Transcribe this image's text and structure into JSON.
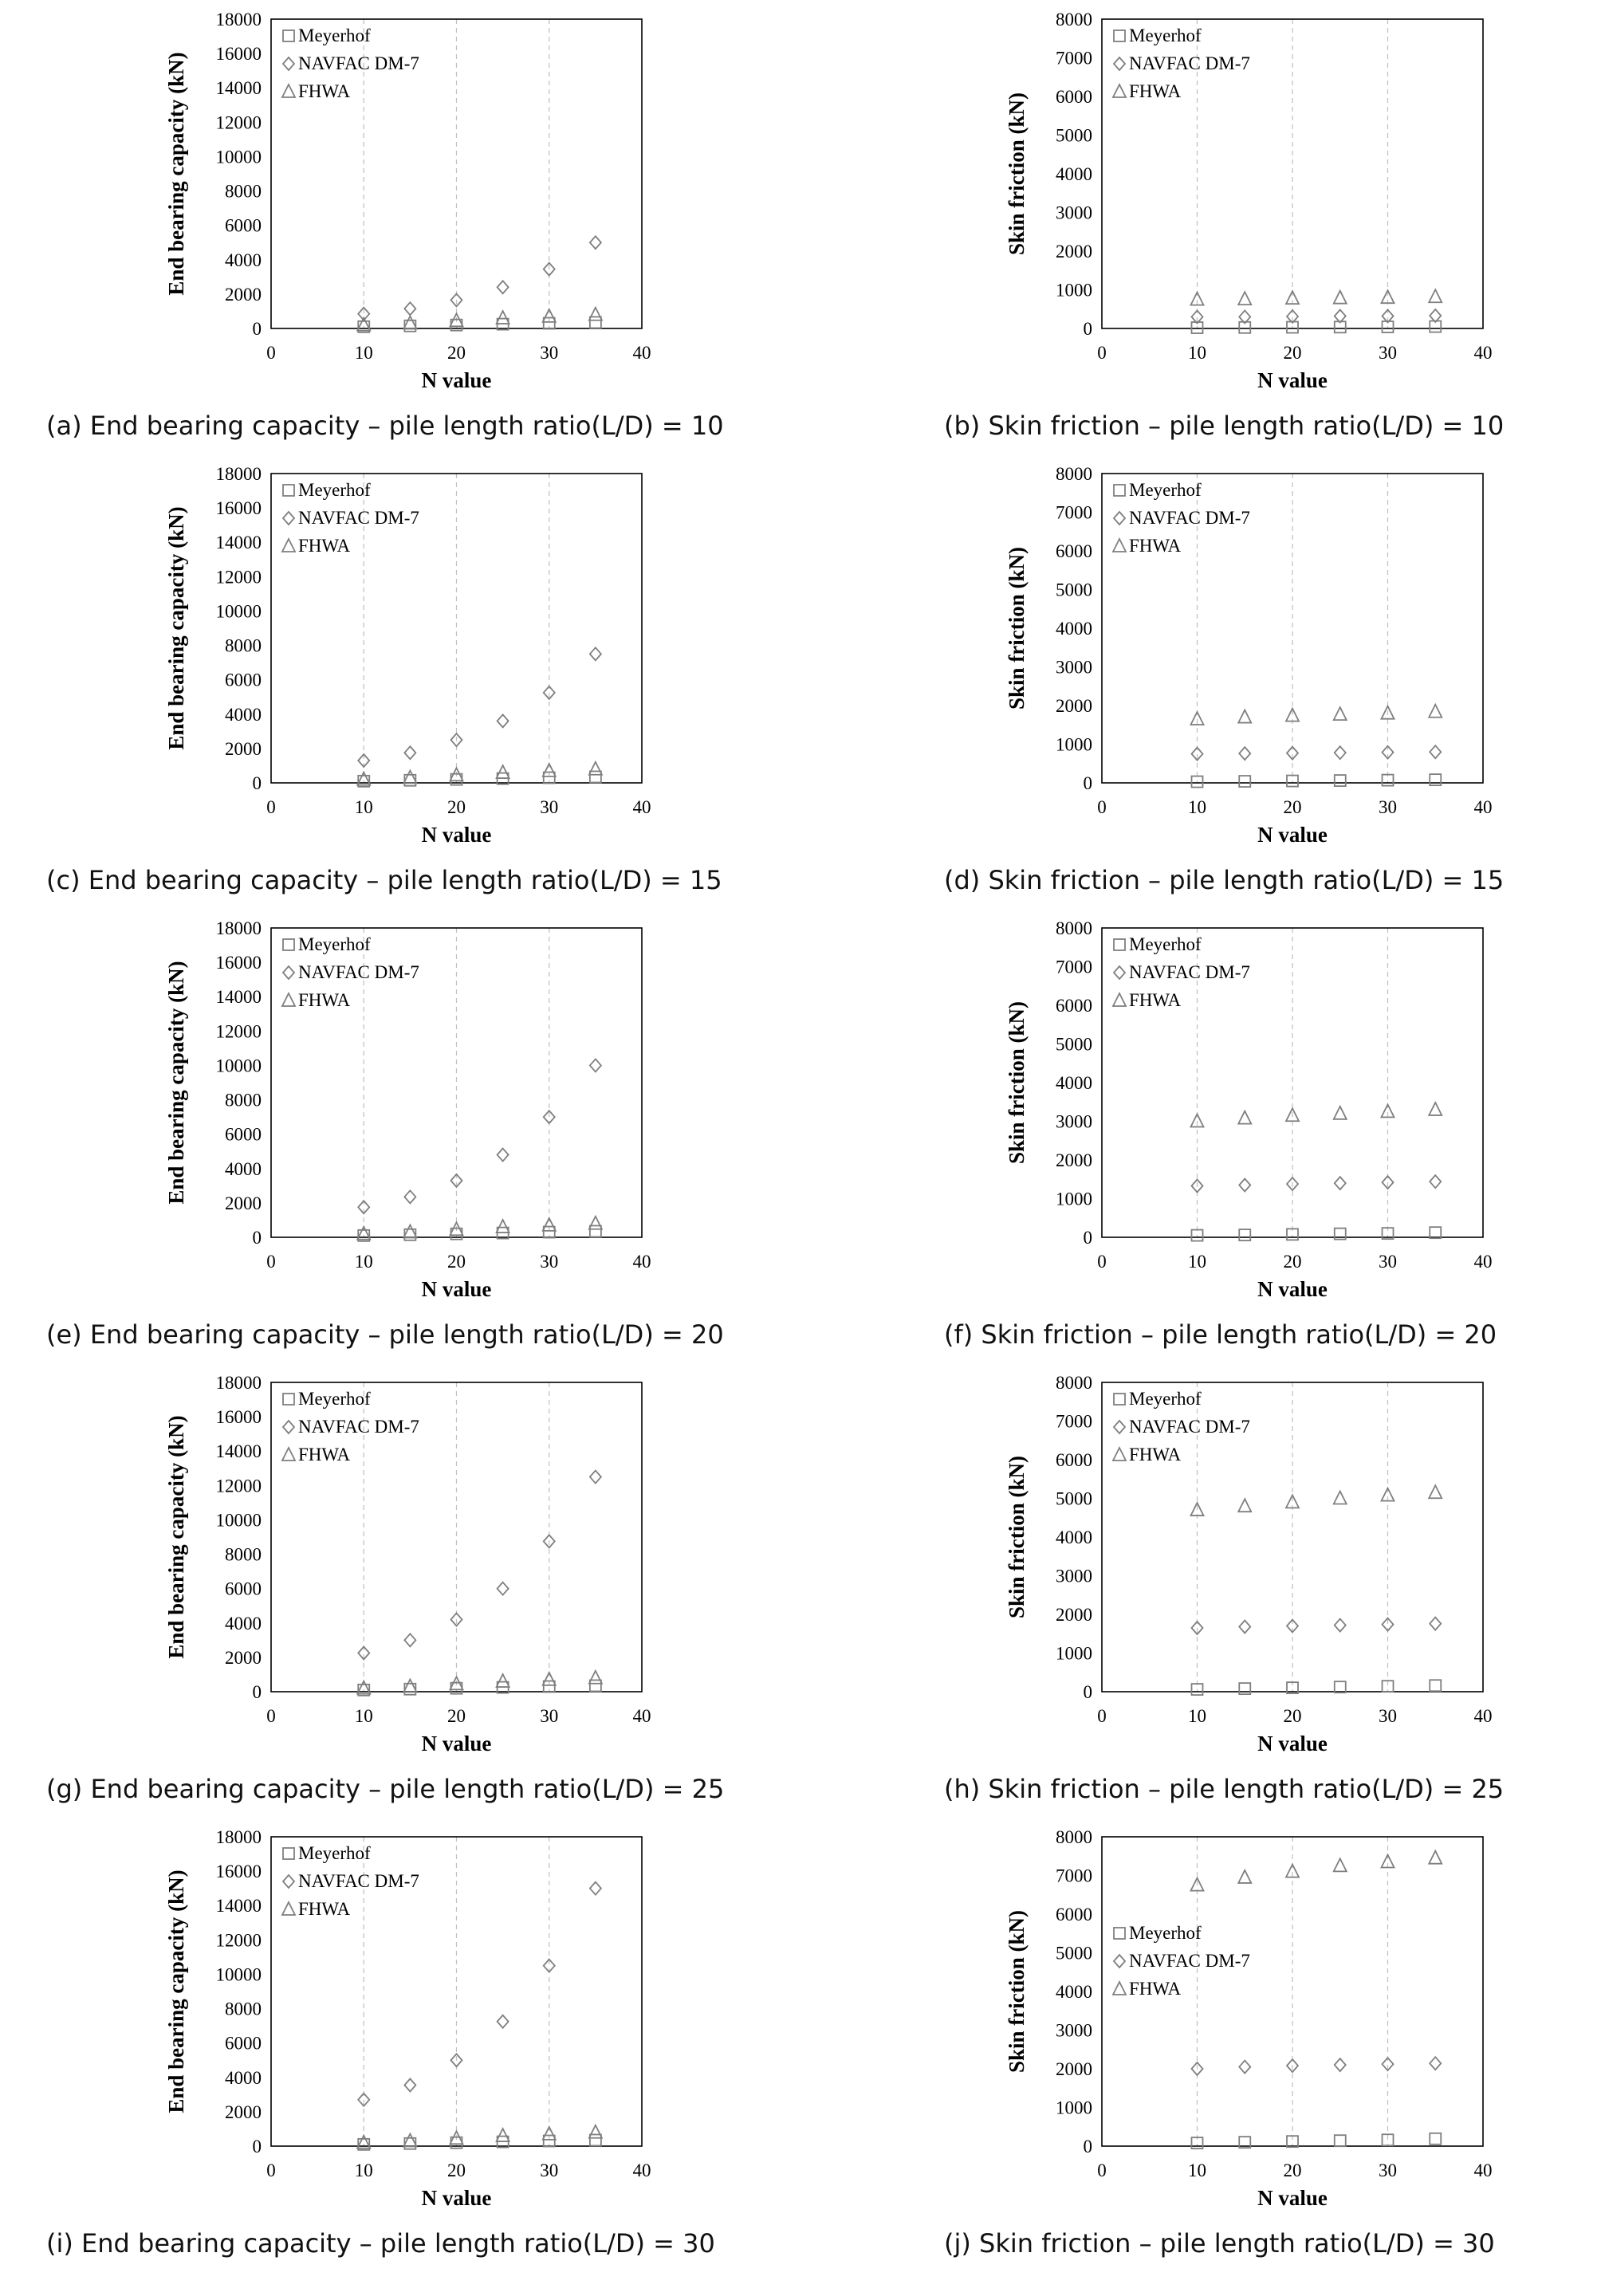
{
  "legend": [
    "Meyerhof",
    "NAVFAC DM-7",
    "FHWA"
  ],
  "markers": [
    "square",
    "diamond",
    "triangle"
  ],
  "colors": {
    "marker": "#7f7f7f",
    "grid": "#bfbfbf",
    "frame": "#000000"
  },
  "chart_data": [
    {
      "id": "a",
      "type": "scatter",
      "caption": "(a) End bearing capacity – pile length ratio(L/D) = 10",
      "xlabel": "N value",
      "ylabel": "End bearing capacity (kN)",
      "xlim": [
        0,
        40
      ],
      "ylim": [
        0,
        18000
      ],
      "xticks": [
        0,
        10,
        20,
        30,
        40
      ],
      "yticks": [
        0,
        2000,
        4000,
        6000,
        8000,
        10000,
        12000,
        14000,
        16000,
        18000
      ],
      "legend_position": "top-left",
      "x": [
        10,
        15,
        20,
        25,
        30,
        35
      ],
      "series": [
        {
          "name": "Meyerhof",
          "marker": "square",
          "values": [
            100,
            150,
            200,
            250,
            300,
            350
          ]
        },
        {
          "name": "NAVFAC DM-7",
          "marker": "diamond",
          "values": [
            850,
            1150,
            1650,
            2400,
            3450,
            5000
          ]
        },
        {
          "name": "FHWA",
          "marker": "triangle",
          "values": [
            200,
            300,
            450,
            600,
            700,
            800
          ]
        }
      ]
    },
    {
      "id": "b",
      "type": "scatter",
      "caption": "(b) Skin friction – pile length ratio(L/D) = 10",
      "xlabel": "N value",
      "ylabel": "Skin friction (kN)",
      "xlim": [
        0,
        40
      ],
      "ylim": [
        0,
        8000
      ],
      "xticks": [
        0,
        10,
        20,
        30,
        40
      ],
      "yticks": [
        0,
        1000,
        2000,
        3000,
        4000,
        5000,
        6000,
        7000,
        8000
      ],
      "legend_position": "top-left",
      "x": [
        10,
        15,
        20,
        25,
        30,
        35
      ],
      "series": [
        {
          "name": "Meyerhof",
          "marker": "square",
          "values": [
            20,
            25,
            30,
            35,
            40,
            50
          ]
        },
        {
          "name": "NAVFAC DM-7",
          "marker": "diamond",
          "values": [
            300,
            300,
            310,
            320,
            320,
            330
          ]
        },
        {
          "name": "FHWA",
          "marker": "triangle",
          "values": [
            750,
            760,
            780,
            790,
            800,
            820
          ]
        }
      ]
    },
    {
      "id": "c",
      "type": "scatter",
      "caption": "(c) End bearing capacity – pile length ratio(L/D) = 15",
      "xlabel": "N value",
      "ylabel": "End bearing capacity (kN)",
      "xlim": [
        0,
        40
      ],
      "ylim": [
        0,
        18000
      ],
      "xticks": [
        0,
        10,
        20,
        30,
        40
      ],
      "yticks": [
        0,
        2000,
        4000,
        6000,
        8000,
        10000,
        12000,
        14000,
        16000,
        18000
      ],
      "legend_position": "top-left",
      "x": [
        10,
        15,
        20,
        25,
        30,
        35
      ],
      "series": [
        {
          "name": "Meyerhof",
          "marker": "square",
          "values": [
            100,
            150,
            200,
            250,
            300,
            350
          ]
        },
        {
          "name": "NAVFAC DM-7",
          "marker": "diamond",
          "values": [
            1300,
            1750,
            2500,
            3600,
            5250,
            7500
          ]
        },
        {
          "name": "FHWA",
          "marker": "triangle",
          "values": [
            200,
            300,
            450,
            600,
            700,
            800
          ]
        }
      ]
    },
    {
      "id": "d",
      "type": "scatter",
      "caption": "(d) Skin friction – pile length ratio(L/D) = 15",
      "xlabel": "N value",
      "ylabel": "Skin friction (kN)",
      "xlim": [
        0,
        40
      ],
      "ylim": [
        0,
        8000
      ],
      "xticks": [
        0,
        10,
        20,
        30,
        40
      ],
      "yticks": [
        0,
        1000,
        2000,
        3000,
        4000,
        5000,
        6000,
        7000,
        8000
      ],
      "legend_position": "top-left",
      "x": [
        10,
        15,
        20,
        25,
        30,
        35
      ],
      "series": [
        {
          "name": "Meyerhof",
          "marker": "square",
          "values": [
            30,
            40,
            50,
            60,
            70,
            80
          ]
        },
        {
          "name": "NAVFAC DM-7",
          "marker": "diamond",
          "values": [
            750,
            760,
            770,
            780,
            790,
            800
          ]
        },
        {
          "name": "FHWA",
          "marker": "triangle",
          "values": [
            1650,
            1700,
            1740,
            1770,
            1800,
            1840
          ]
        }
      ]
    },
    {
      "id": "e",
      "type": "scatter",
      "caption": "(e) End bearing capacity – pile length ratio(L/D) = 20",
      "xlabel": "N value",
      "ylabel": "End bearing capacity (kN)",
      "xlim": [
        0,
        40
      ],
      "ylim": [
        0,
        18000
      ],
      "xticks": [
        0,
        10,
        20,
        30,
        40
      ],
      "yticks": [
        0,
        2000,
        4000,
        6000,
        8000,
        10000,
        12000,
        14000,
        16000,
        18000
      ],
      "legend_position": "top-left",
      "x": [
        10,
        15,
        20,
        25,
        30,
        35
      ],
      "series": [
        {
          "name": "Meyerhof",
          "marker": "square",
          "values": [
            100,
            150,
            200,
            250,
            300,
            350
          ]
        },
        {
          "name": "NAVFAC DM-7",
          "marker": "diamond",
          "values": [
            1750,
            2350,
            3300,
            4800,
            7000,
            10000
          ]
        },
        {
          "name": "FHWA",
          "marker": "triangle",
          "values": [
            200,
            300,
            450,
            600,
            700,
            800
          ]
        }
      ]
    },
    {
      "id": "f",
      "type": "scatter",
      "caption": "(f) Skin friction – pile length ratio(L/D) = 20",
      "xlabel": "N value",
      "ylabel": "Skin friction (kN)",
      "xlim": [
        0,
        40
      ],
      "ylim": [
        0,
        8000
      ],
      "xticks": [
        0,
        10,
        20,
        30,
        40
      ],
      "yticks": [
        0,
        1000,
        2000,
        3000,
        4000,
        5000,
        6000,
        7000,
        8000
      ],
      "legend_position": "top-left",
      "x": [
        10,
        15,
        20,
        25,
        30,
        35
      ],
      "series": [
        {
          "name": "Meyerhof",
          "marker": "square",
          "values": [
            50,
            60,
            75,
            90,
            100,
            120
          ]
        },
        {
          "name": "NAVFAC DM-7",
          "marker": "diamond",
          "values": [
            1330,
            1350,
            1380,
            1400,
            1420,
            1440
          ]
        },
        {
          "name": "FHWA",
          "marker": "triangle",
          "values": [
            3000,
            3080,
            3150,
            3200,
            3250,
            3300
          ]
        }
      ]
    },
    {
      "id": "g",
      "type": "scatter",
      "caption": "(g) End bearing capacity – pile length ratio(L/D) = 25",
      "xlabel": "N value",
      "ylabel": "End bearing capacity (kN)",
      "xlim": [
        0,
        40
      ],
      "ylim": [
        0,
        18000
      ],
      "xticks": [
        0,
        10,
        20,
        30,
        40
      ],
      "yticks": [
        0,
        2000,
        4000,
        6000,
        8000,
        10000,
        12000,
        14000,
        16000,
        18000
      ],
      "legend_position": "top-left",
      "x": [
        10,
        15,
        20,
        25,
        30,
        35
      ],
      "series": [
        {
          "name": "Meyerhof",
          "marker": "square",
          "values": [
            100,
            150,
            200,
            250,
            300,
            350
          ]
        },
        {
          "name": "NAVFAC DM-7",
          "marker": "diamond",
          "values": [
            2250,
            3000,
            4200,
            6000,
            8750,
            12500
          ]
        },
        {
          "name": "FHWA",
          "marker": "triangle",
          "values": [
            200,
            300,
            450,
            600,
            700,
            800
          ]
        }
      ]
    },
    {
      "id": "h",
      "type": "scatter",
      "caption": "(h) Skin friction – pile length ratio(L/D) = 25",
      "xlabel": "N value",
      "ylabel": "Skin friction (kN)",
      "xlim": [
        0,
        40
      ],
      "ylim": [
        0,
        8000
      ],
      "xticks": [
        0,
        10,
        20,
        30,
        40
      ],
      "yticks": [
        0,
        1000,
        2000,
        3000,
        4000,
        5000,
        6000,
        7000,
        8000
      ],
      "legend_position": "top-left",
      "x": [
        10,
        15,
        20,
        25,
        30,
        35
      ],
      "series": [
        {
          "name": "Meyerhof",
          "marker": "square",
          "values": [
            60,
            80,
            100,
            120,
            140,
            160
          ]
        },
        {
          "name": "NAVFAC DM-7",
          "marker": "diamond",
          "values": [
            1650,
            1680,
            1700,
            1720,
            1740,
            1760
          ]
        },
        {
          "name": "FHWA",
          "marker": "triangle",
          "values": [
            4700,
            4800,
            4900,
            5000,
            5080,
            5150
          ]
        }
      ]
    },
    {
      "id": "i",
      "type": "scatter",
      "caption": "(i) End bearing capacity – pile length ratio(L/D) = 30",
      "xlabel": "N value",
      "ylabel": "End bearing capacity (kN)",
      "xlim": [
        0,
        40
      ],
      "ylim": [
        0,
        18000
      ],
      "xticks": [
        0,
        10,
        20,
        30,
        40
      ],
      "yticks": [
        0,
        2000,
        4000,
        6000,
        8000,
        10000,
        12000,
        14000,
        16000,
        18000
      ],
      "legend_position": "top-left",
      "x": [
        10,
        15,
        20,
        25,
        30,
        35
      ],
      "series": [
        {
          "name": "Meyerhof",
          "marker": "square",
          "values": [
            100,
            150,
            200,
            250,
            300,
            350
          ]
        },
        {
          "name": "NAVFAC DM-7",
          "marker": "diamond",
          "values": [
            2700,
            3550,
            5000,
            7250,
            10500,
            15000
          ]
        },
        {
          "name": "FHWA",
          "marker": "triangle",
          "values": [
            200,
            300,
            450,
            600,
            700,
            800
          ]
        }
      ]
    },
    {
      "id": "j",
      "type": "scatter",
      "caption": "(j) Skin friction – pile length ratio(L/D) = 30",
      "xlabel": "N value",
      "ylabel": "Skin friction (kN)",
      "xlim": [
        0,
        40
      ],
      "ylim": [
        0,
        8000
      ],
      "xticks": [
        0,
        10,
        20,
        30,
        40
      ],
      "yticks": [
        0,
        1000,
        2000,
        3000,
        4000,
        5000,
        6000,
        7000,
        8000
      ],
      "legend_position": "middle-left",
      "x": [
        10,
        15,
        20,
        25,
        30,
        35
      ],
      "series": [
        {
          "name": "Meyerhof",
          "marker": "square",
          "values": [
            80,
            100,
            120,
            140,
            160,
            190
          ]
        },
        {
          "name": "NAVFAC DM-7",
          "marker": "diamond",
          "values": [
            2000,
            2050,
            2080,
            2100,
            2120,
            2140
          ]
        },
        {
          "name": "FHWA",
          "marker": "triangle",
          "values": [
            6750,
            6950,
            7100,
            7250,
            7350,
            7450
          ]
        }
      ]
    }
  ]
}
